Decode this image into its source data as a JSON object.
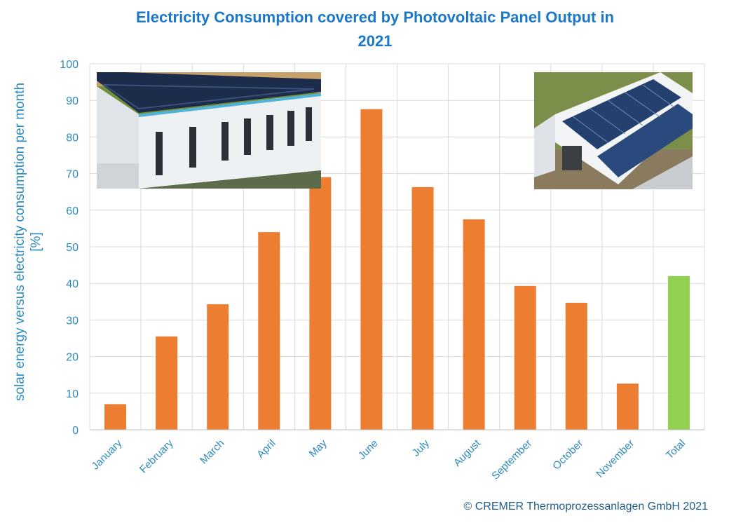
{
  "chart_data": {
    "type": "bar",
    "title_line1": "Electricity Consumption covered by Photovoltaic Panel Output in",
    "title_line2": "2021",
    "ylabel_line1": "solar energy versus electricity consumption per month",
    "ylabel_line2": "[%]",
    "xlabel": "",
    "ylim": [
      0,
      100
    ],
    "yticks": [
      0,
      10,
      20,
      30,
      40,
      50,
      60,
      70,
      80,
      90,
      100
    ],
    "categories": [
      "January",
      "February",
      "March",
      "April",
      "May",
      "June",
      "July",
      "August",
      "September",
      "October",
      "November",
      "Total"
    ],
    "values": [
      7,
      25.5,
      34.3,
      54,
      69,
      87.6,
      66.3,
      57.5,
      39.3,
      34.7,
      12.6,
      42
    ],
    "grid": "vertical and horizontal gridlines",
    "colors": {
      "bar": "#ed7d31",
      "total_bar": "#92d050",
      "axis_text": "#2e8bc0",
      "title": "#1a77c9",
      "gridline": "#d9d9d9"
    }
  },
  "footer": {
    "copyright": "© CREMER Thermoprozessanlagen GmbH 2021"
  },
  "photos": [
    {
      "name": "building-photo-left",
      "icon": "photo-building-icon"
    },
    {
      "name": "building-photo-right",
      "icon": "photo-building-icon"
    }
  ]
}
